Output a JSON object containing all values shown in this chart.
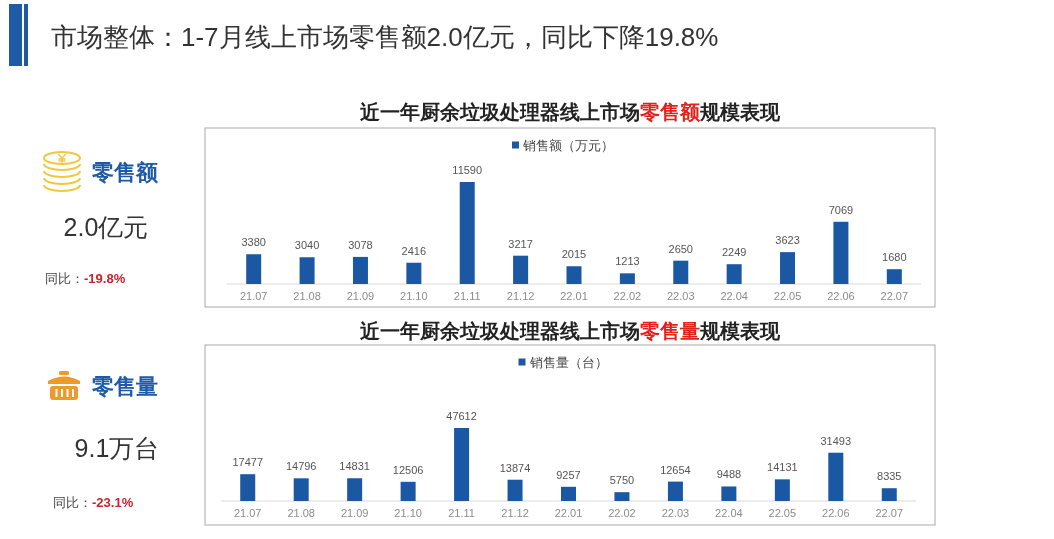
{
  "chart_data": [
    {
      "type": "other",
      "title": "市场整体：1-7月线上市场零售额2.0亿元，同比下降19.8%"
    },
    {
      "type": "other",
      "title": "零售额",
      "annotations": [
        "2.0亿元",
        "同比：-19.8%"
      ]
    },
    {
      "type": "bar",
      "title": "近一年厨余垃圾处理器线上市场零售额规模表现",
      "categories": [
        "21.07",
        "21.08",
        "21.09",
        "21.10",
        "21.11",
        "21.12",
        "22.01",
        "22.02",
        "22.03",
        "22.04",
        "22.05",
        "22.06",
        "22.07"
      ],
      "series": [
        {
          "name": "销售额（万元）",
          "color": "#1b58a4",
          "values": [
            3380,
            3040,
            3078,
            2416,
            11590,
            3217,
            2015,
            1213,
            2650,
            2249,
            3623,
            7069,
            1680
          ]
        }
      ],
      "data_labels": true,
      "legend": "top"
    },
    {
      "type": "other",
      "title": "零售量",
      "annotations": [
        "9.1万台",
        "同比：-23.1%"
      ]
    },
    {
      "type": "bar",
      "title": "近一年厨余垃圾处理器线上市场零售量规模表现",
      "categories": [
        "21.07",
        "21.08",
        "21.09",
        "21.10",
        "21.11",
        "21.12",
        "22.01",
        "22.02",
        "22.03",
        "22.04",
        "22.05",
        "22.06",
        "22.07"
      ],
      "series": [
        {
          "name": "销售量（台）",
          "color": "#1b58a4",
          "values": [
            17477,
            14796,
            14831,
            12506,
            47612,
            13874,
            9257,
            5750,
            12654,
            9488,
            14131,
            31493,
            8335
          ]
        }
      ],
      "data_labels": true,
      "legend": "top"
    }
  ]
}
